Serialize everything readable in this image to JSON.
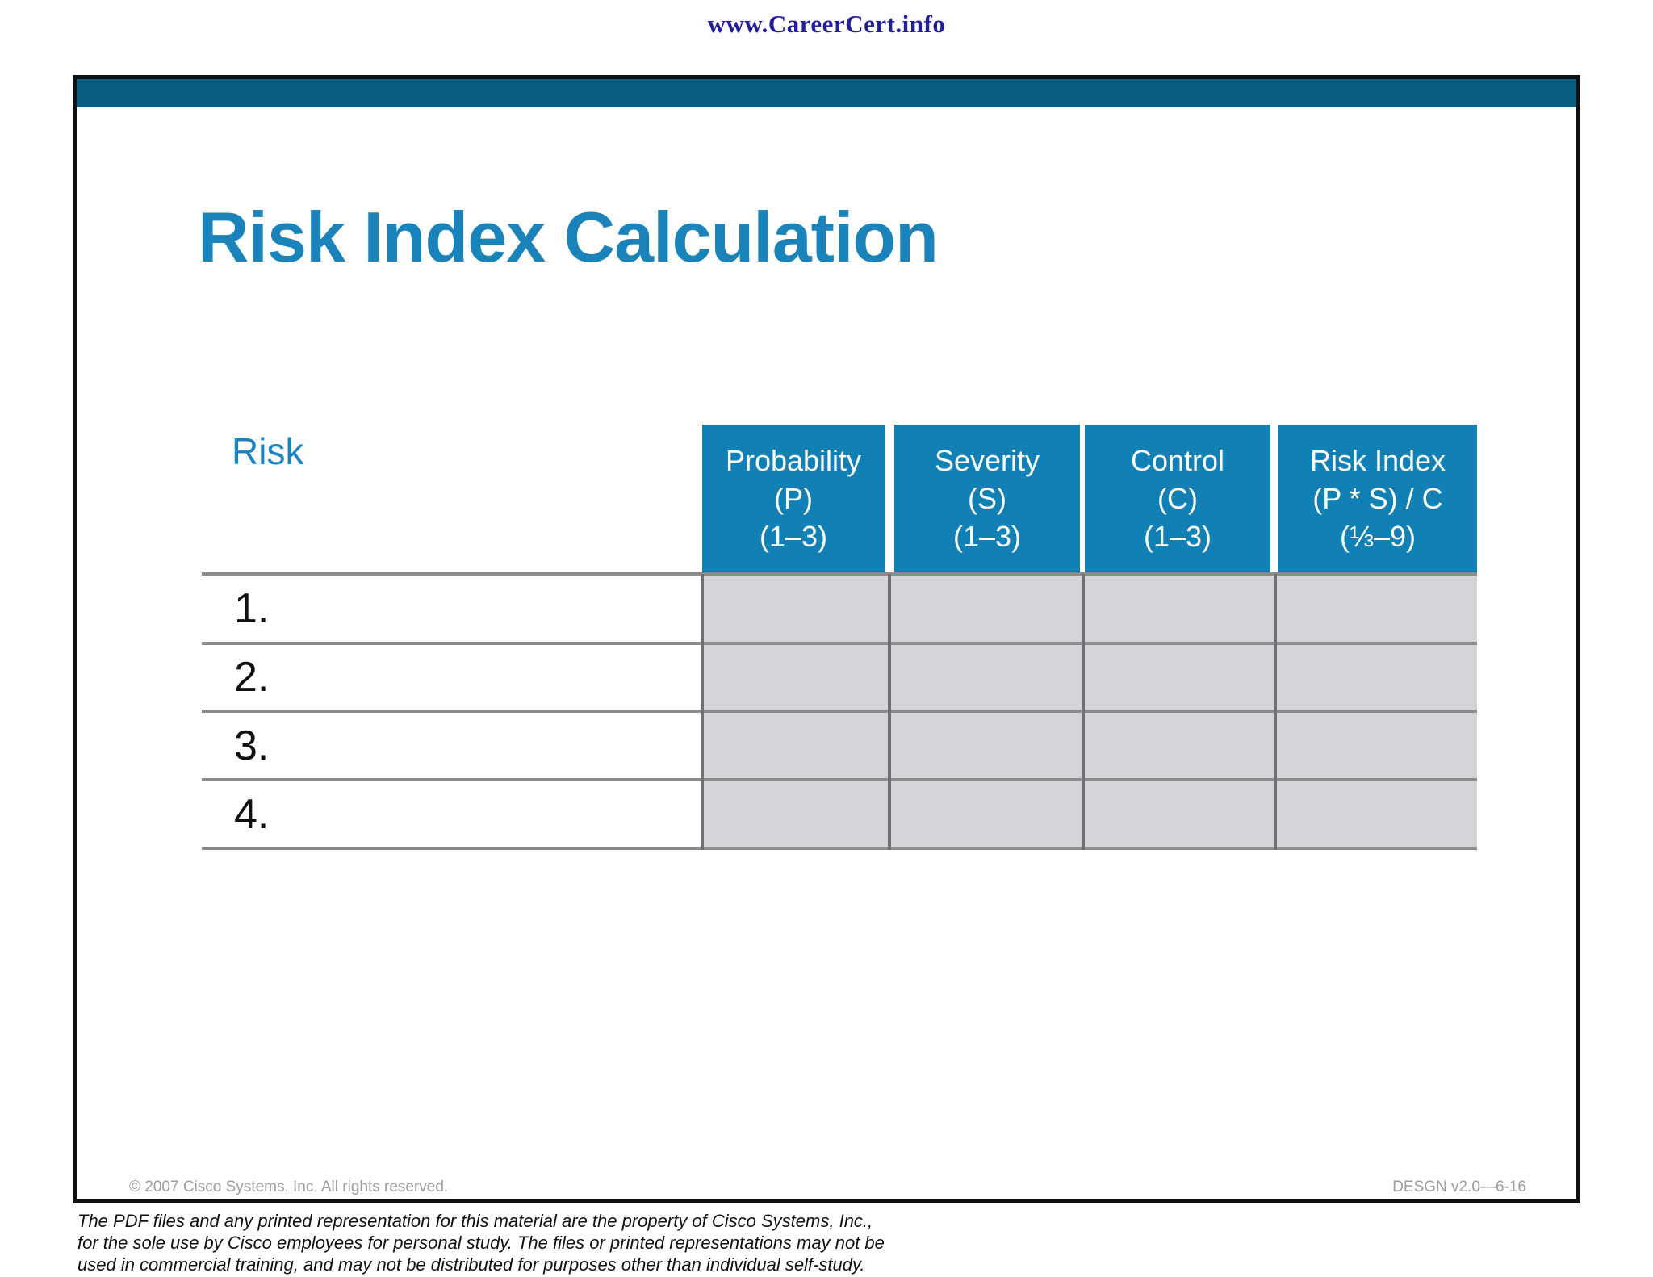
{
  "page": {
    "watermark": "www.CareerCert.info"
  },
  "slide": {
    "title": "Risk Index Calculation",
    "table": {
      "risk_header": "Risk",
      "columns": [
        {
          "label": "Probability\n(P)\n(1–3)"
        },
        {
          "label": "Severity\n(S)\n(1–3)"
        },
        {
          "label": "Control\n(C)\n(1–3)"
        },
        {
          "label": "Risk Index\n(P * S) / C\n(⅓–9)"
        }
      ],
      "rows": [
        {
          "number": "1.",
          "probability": "",
          "severity": "",
          "control": "",
          "risk_index": ""
        },
        {
          "number": "2.",
          "probability": "",
          "severity": "",
          "control": "",
          "risk_index": ""
        },
        {
          "number": "3.",
          "probability": "",
          "severity": "",
          "control": "",
          "risk_index": ""
        },
        {
          "number": "4.",
          "probability": "",
          "severity": "",
          "control": "",
          "risk_index": ""
        }
      ]
    },
    "footer": {
      "copyright": "© 2007 Cisco Systems, Inc. All rights reserved.",
      "doc_ref": "DESGN v2.0—6-16"
    }
  },
  "disclaimer": "The PDF files and any printed representation for this material are the property of Cisco Systems, Inc.,\nfor the sole use by Cisco employees for personal study. The files or printed representations may not be\nused in commercial training, and may not be distributed for purposes other than individual self-study.",
  "colors": {
    "watermark_navy": "#221f9b",
    "slide_border_black": "#101010",
    "top_bar_teal": "#0b5e80",
    "title_blue": "#1a83ba",
    "header_cell_blue": "#1180b4",
    "risk_label_blue": "#1b82c2",
    "empty_cell_gray": "#d5d4d8",
    "row_line_gray": "#8b8b8b",
    "column_divider_gray": "#6f7074",
    "footer_text_gray": "#9d9d9d"
  }
}
